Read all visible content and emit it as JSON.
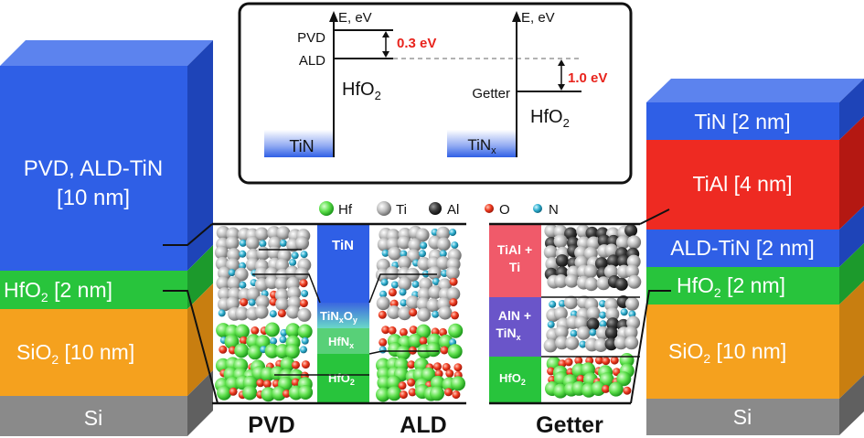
{
  "colors": {
    "tin": "#2f5fe6",
    "hfo2": "#28c43c",
    "sio2": "#f5a11e",
    "si": "#8a8a8a",
    "tial": "#ee2a22",
    "tialti": "#f05a6a",
    "ain": "#6a55c9",
    "hfnx": "#58d078",
    "accent_red": "#e8231c"
  },
  "left_stack": {
    "tin_label": "PVD, ALD-TiN",
    "tin_thickness": "[10 nm]",
    "hfo2_label": "HfO",
    "hfo2_sub": "2",
    "hfo2_thickness": " [2 nm]",
    "sio2_label": "SiO",
    "sio2_sub": "2",
    "sio2_thickness": " [10 nm]",
    "si_label": "Si"
  },
  "right_stack": {
    "tin_label": "TiN [2 nm]",
    "tial_label": "TiAl [4 nm]",
    "aldtin_label": "ALD-TiN [2 nm]",
    "hfo2_label": "HfO",
    "hfo2_sub": "2",
    "hfo2_thickness": " [2 nm]",
    "sio2_label": "SiO",
    "sio2_sub": "2",
    "sio2_thickness": " [10 nm]",
    "si_label": "Si"
  },
  "band_diagram": {
    "axis_label_left": "E, eV",
    "axis_label_right": "E, eV",
    "pvd_label": "PVD",
    "ald_label": "ALD",
    "getter_label": "Getter",
    "offset_left": "0.3 eV",
    "offset_right": "1.0 eV",
    "hfo2_left": "HfO",
    "hfo2_left_sub": "2",
    "hfo2_right": "HfO",
    "hfo2_right_sub": "2",
    "tin_box": "TiN",
    "tinx_box": "TiN",
    "tinx_sub": "x"
  },
  "legend": {
    "items": [
      {
        "name": "Hf",
        "color": "#3fd63a",
        "size": "large"
      },
      {
        "name": "Ti",
        "color": "#b8b8b8",
        "size": "large"
      },
      {
        "name": "Al",
        "color": "#333333",
        "size": "medium"
      },
      {
        "name": "O",
        "color": "#e8321c",
        "size": "small"
      },
      {
        "name": "N",
        "color": "#2aa6c8",
        "size": "small"
      }
    ]
  },
  "center_layers": {
    "tin": "TiN",
    "tinxoy_main": "TiN",
    "tinxoy_sub1": "x",
    "tinxoy_mid": "O",
    "tinxoy_sub2": "y",
    "hfnx_main": "HfN",
    "hfnx_sub": "x",
    "hfo2_main": "HfO",
    "hfo2_sub": "2"
  },
  "getter_layers": {
    "tial_line1": "TiAl +",
    "tial_line2": "Ti",
    "ain_line1": "AlN +",
    "ain_line2": "TiN",
    "ain_sub": "x",
    "hfo2_main": "HfO",
    "hfo2_sub": "2"
  },
  "captions": {
    "pvd": "PVD",
    "ald": "ALD",
    "getter": "Getter"
  }
}
